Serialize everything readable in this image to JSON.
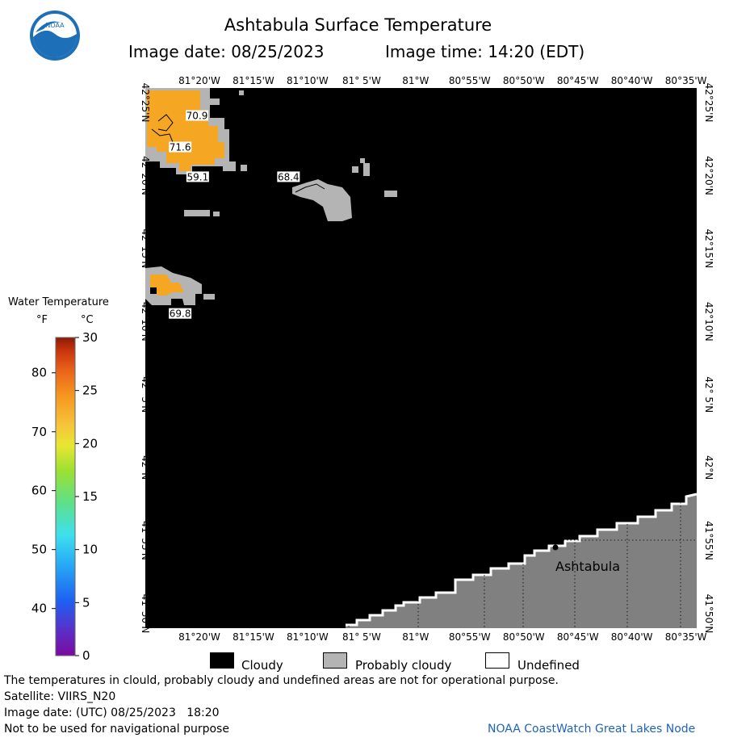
{
  "header": {
    "title": "Ashtabula Surface Temperature",
    "image_date": "Image date: 08/25/2023",
    "image_time": "Image time: 14:20 (EDT)"
  },
  "logo": {
    "text": "NOAA"
  },
  "colorbar": {
    "title": "Water Temperature",
    "unit_f": "°F",
    "unit_c": "°C",
    "f_ticks": [
      {
        "label": "80",
        "c": 26.67
      },
      {
        "label": "70",
        "c": 21.11
      },
      {
        "label": "60",
        "c": 15.56
      },
      {
        "label": "50",
        "c": 10.0
      },
      {
        "label": "40",
        "c": 4.44
      }
    ],
    "c_ticks": [
      {
        "label": "30",
        "c": 30
      },
      {
        "label": "25",
        "c": 25
      },
      {
        "label": "20",
        "c": 20
      },
      {
        "label": "15",
        "c": 15
      },
      {
        "label": "10",
        "c": 10
      },
      {
        "label": "5",
        "c": 5
      },
      {
        "label": "0",
        "c": 0
      }
    ],
    "range_c": [
      0,
      30
    ],
    "colors": [
      "#7b0aa0",
      "#5a2fc8",
      "#1f5ff0",
      "#26a6f5",
      "#3ee0ee",
      "#5ee08a",
      "#9be032",
      "#e8e632",
      "#f6c23a",
      "#f5951f",
      "#e8601a",
      "#c6340d",
      "#8c1a06"
    ]
  },
  "map": {
    "lon_labels": [
      "81°20'W",
      "81°15'W",
      "81°10'W",
      "81° 5'W",
      "81°W",
      "80°55'W",
      "80°50'W",
      "80°45'W",
      "80°40'W",
      "80°35'W"
    ],
    "lat_labels": [
      "42°25'N",
      "42°20'N",
      "42°15'N",
      "42°10'N",
      "42° 5'N",
      "42°N",
      "41°55'N",
      "41°50'N"
    ],
    "temperature_labels": [
      {
        "value": "70.9",
        "lon": -81.337,
        "lat": 42.402
      },
      {
        "value": "71.6",
        "lon": -81.363,
        "lat": 42.366
      },
      {
        "value": "59.1",
        "lon": -81.336,
        "lat": 42.332
      },
      {
        "value": "68.4",
        "lon": -81.196,
        "lat": 42.332
      },
      {
        "value": "69.8",
        "lon": -81.363,
        "lat": 42.176
      }
    ],
    "place_label": "Ashtabula",
    "colors": {
      "cloudy": "#000000",
      "probably_cloudy": "#b4b4b4",
      "land": "#808080",
      "warm_water": "#f5a623",
      "undefined": "#ffffff"
    }
  },
  "key": {
    "cloudy": "Cloudy",
    "probably_cloudy": "Probably cloudy",
    "undefined": "Undefined"
  },
  "footer": {
    "disclaimer": "The temperatures in clould, probably cloudy and undefined areas are not for operational purpose.",
    "satellite": "Satellite: VIIRS_N20",
    "utc_date": "Image date: (UTC) 08/25/2023   18:20",
    "nav_warning": "Not to be used for navigational purpose",
    "credit": "NOAA CoastWatch Great Lakes Node"
  }
}
